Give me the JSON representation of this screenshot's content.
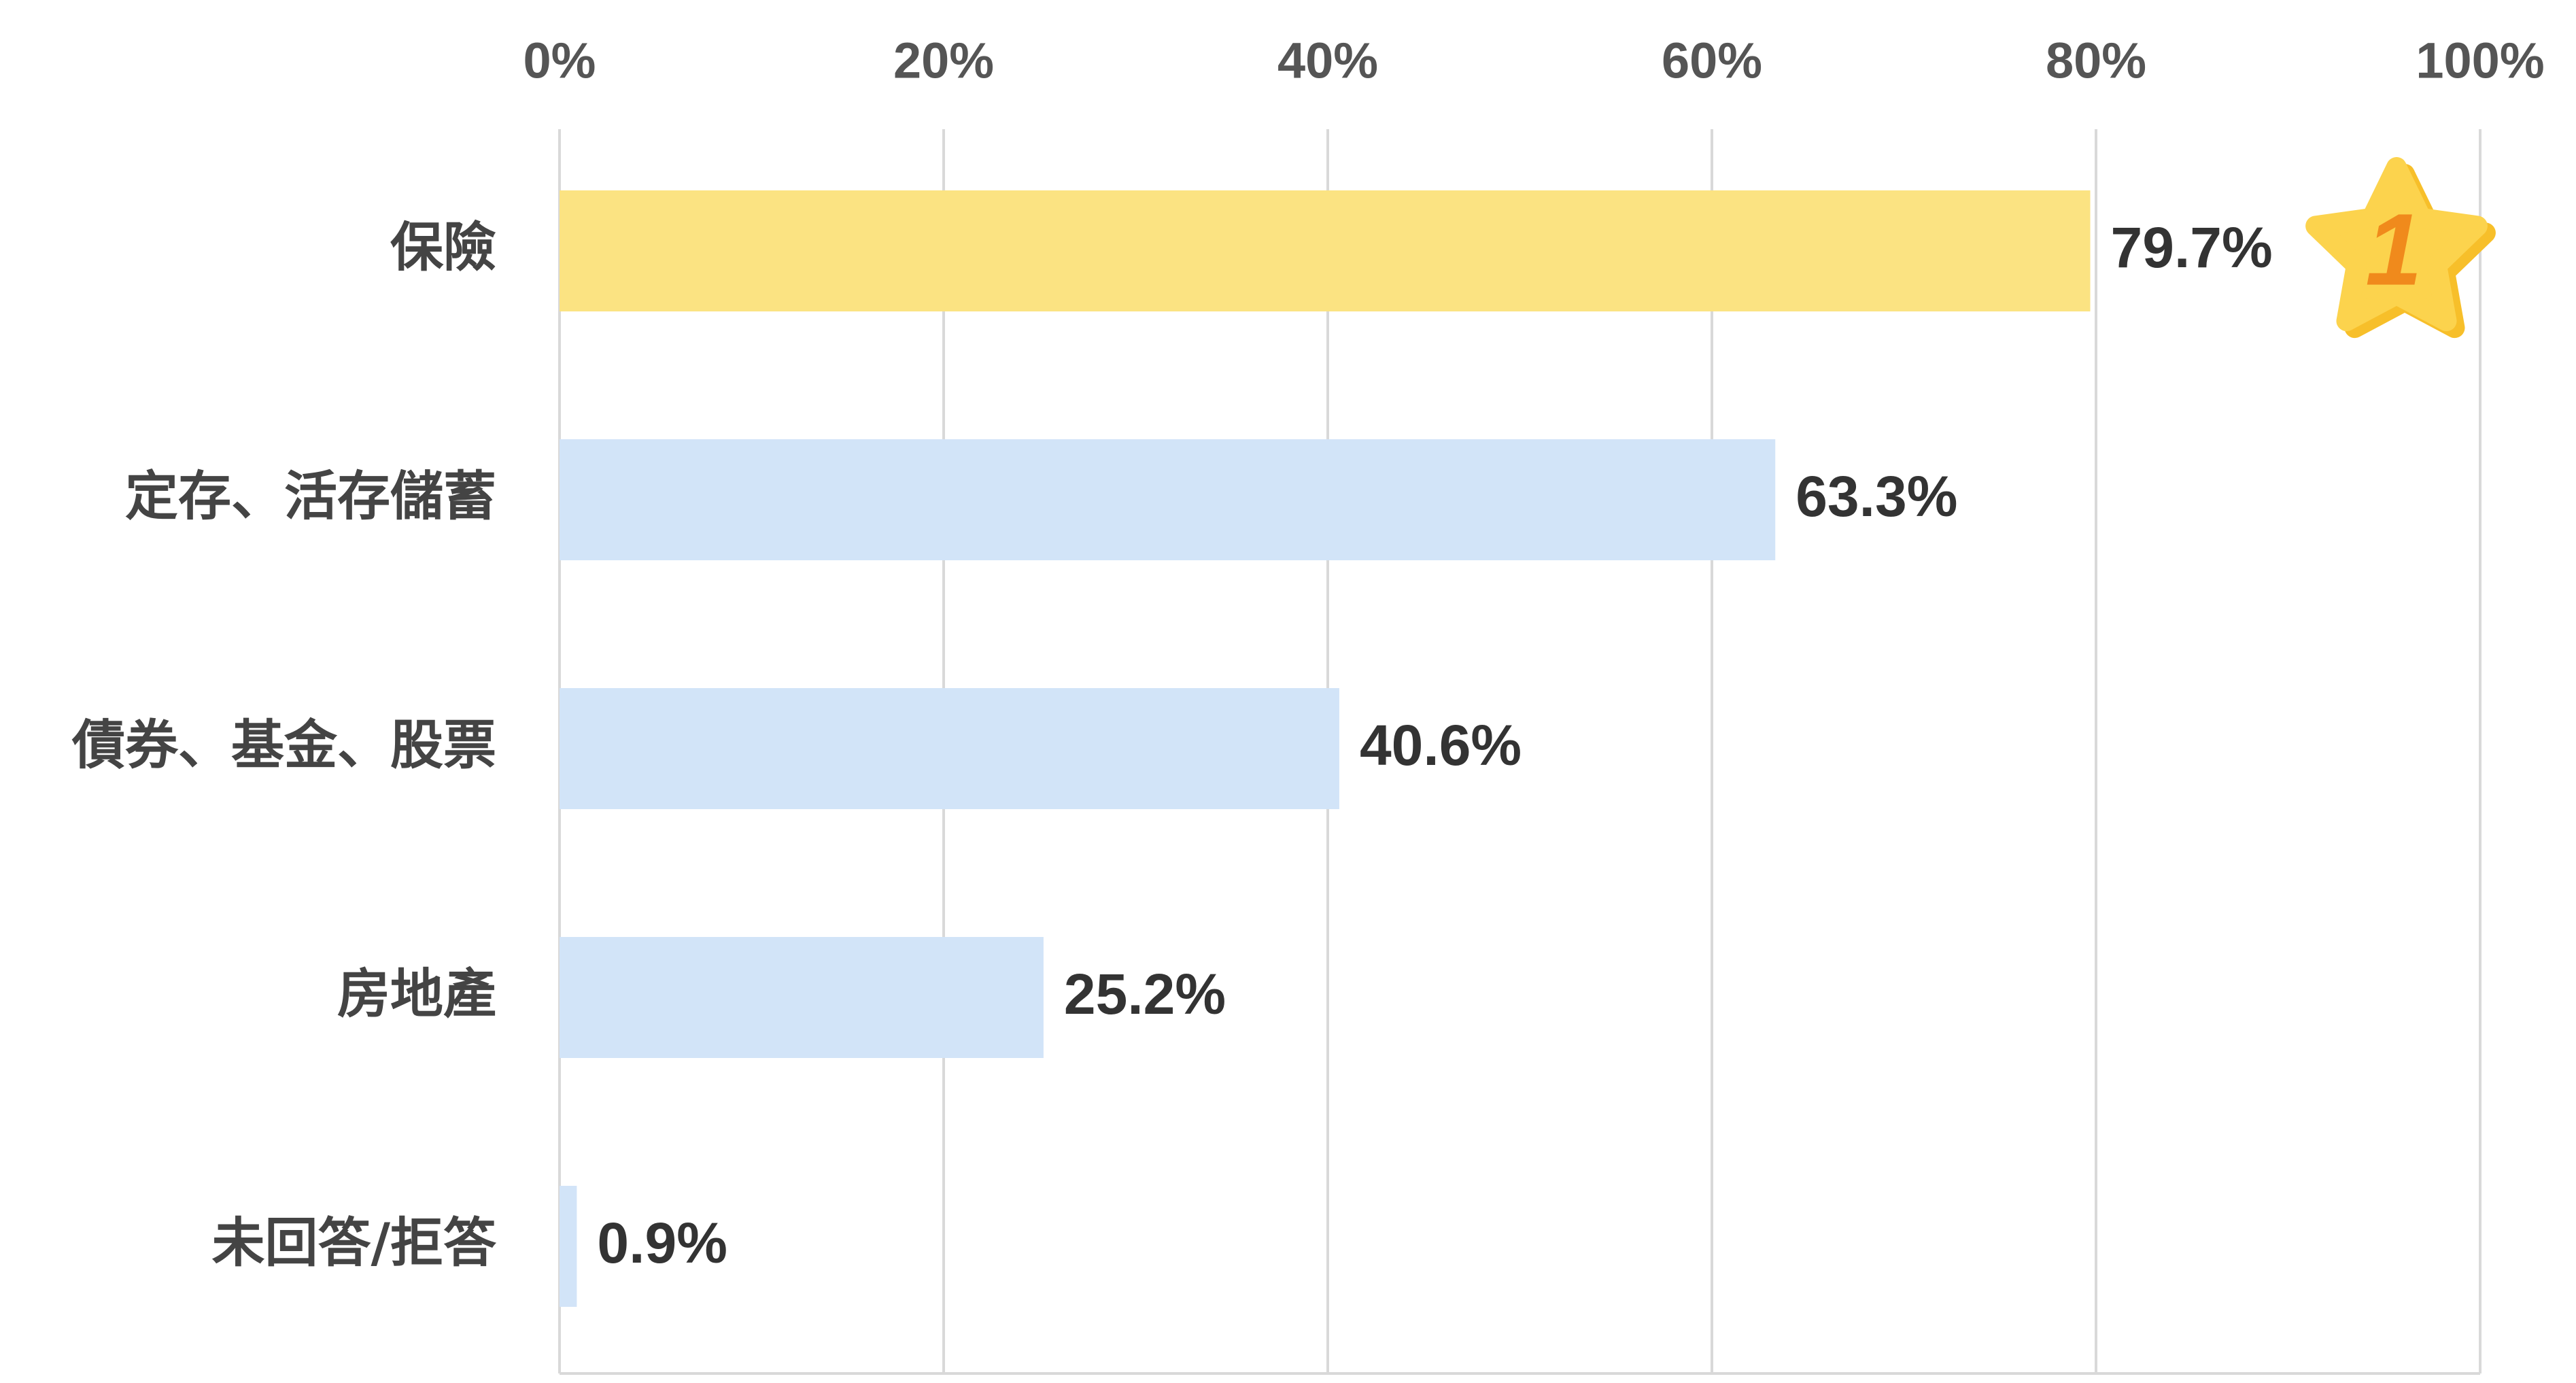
{
  "chart_data": {
    "type": "bar",
    "orientation": "horizontal",
    "categories": [
      "保險",
      "定存、活存儲蓄",
      "債券、基金、股票",
      "房地產",
      "未回答/拒答"
    ],
    "values": [
      79.7,
      63.3,
      40.6,
      25.2,
      0.9
    ],
    "value_labels": [
      "79.7%",
      "63.3%",
      "40.6%",
      "25.2%",
      "0.9%"
    ],
    "xlim": [
      0,
      100
    ],
    "x_ticks": [
      0,
      20,
      40,
      60,
      80,
      100
    ],
    "x_tick_labels": [
      "0%",
      "20%",
      "40%",
      "60%",
      "80%",
      "100%"
    ],
    "x_axis_position": "top",
    "grid": true,
    "title": "",
    "xlabel": "",
    "ylabel": "",
    "highlight_index": 0,
    "highlight_badge": "1",
    "colors": {
      "highlight_bar": "#fbe382",
      "bar": "#d2e4f8",
      "grid": "#d9d9d9",
      "star": "#fcd34d",
      "star_shadow": "#f7bf2a",
      "rank_number": "#f08a1c"
    }
  }
}
